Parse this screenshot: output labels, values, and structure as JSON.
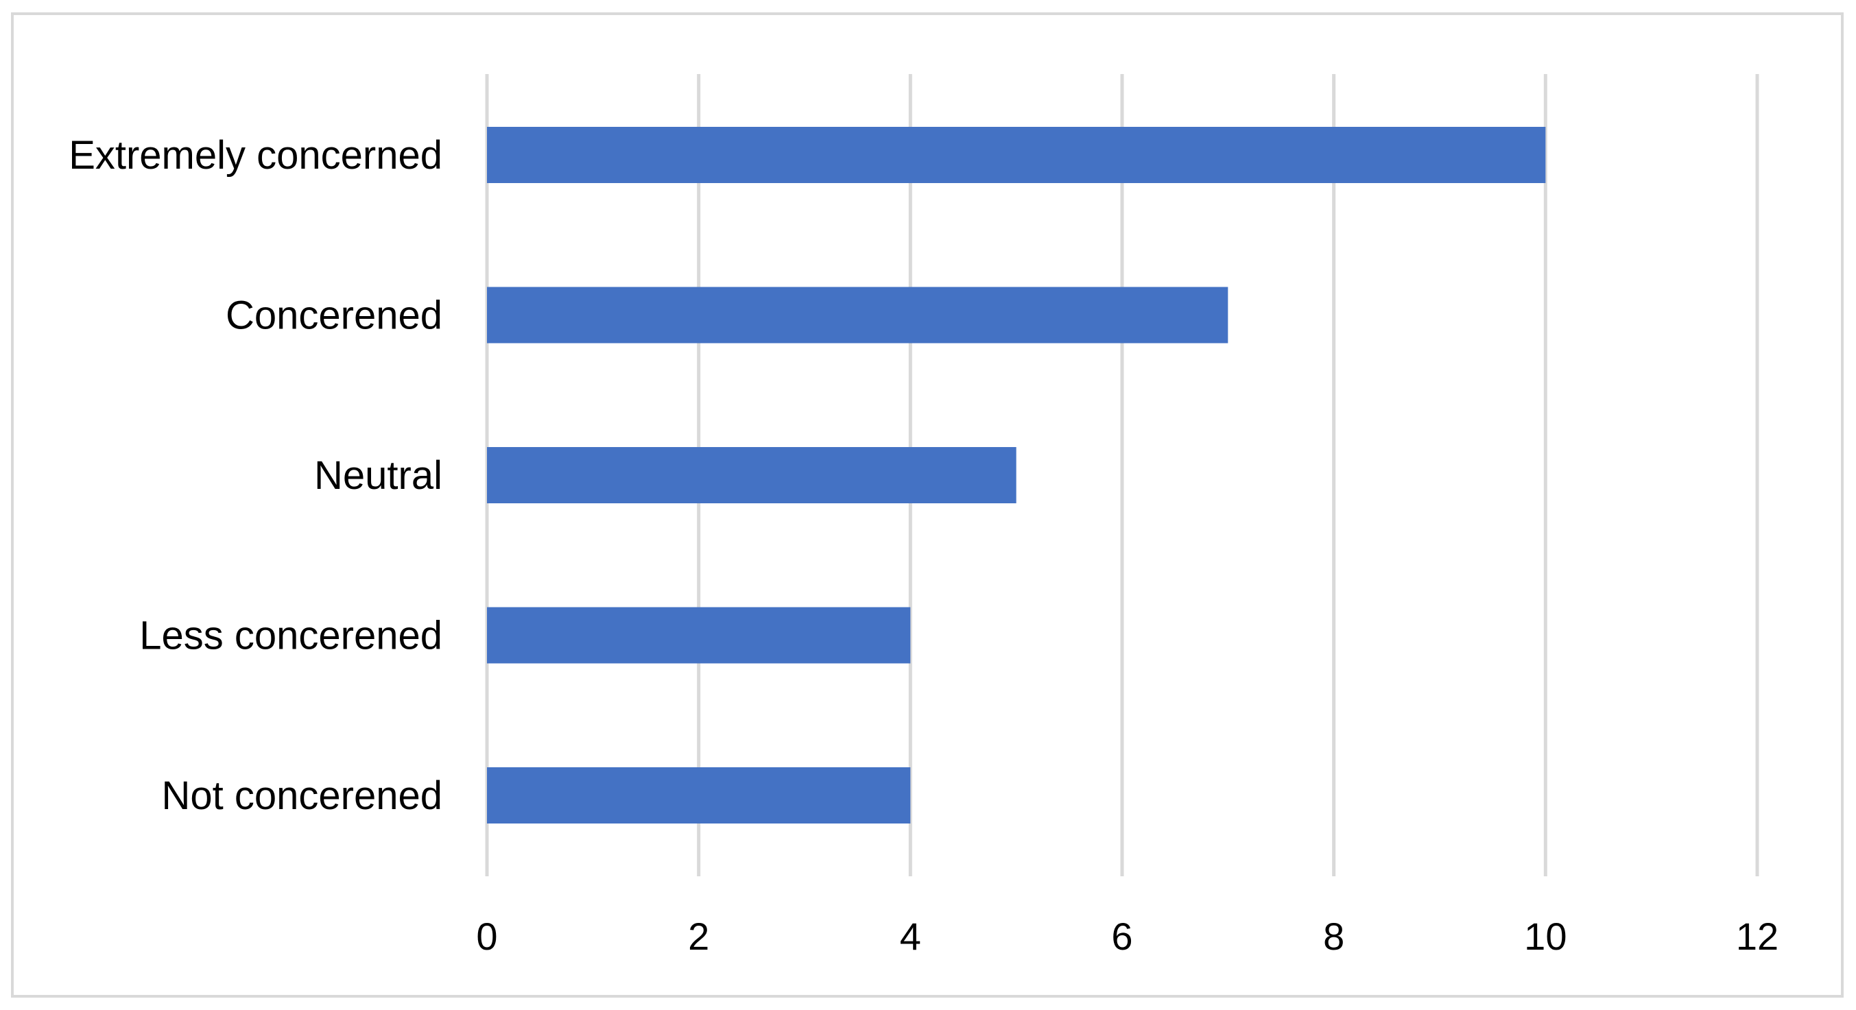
{
  "chart_data": {
    "type": "bar",
    "orientation": "horizontal",
    "categories": [
      "Extremely concerned",
      "Concerened",
      "Neutral",
      "Less concerened",
      "Not concerened"
    ],
    "values": [
      10,
      7,
      5,
      4,
      4
    ],
    "xlim": [
      0,
      12
    ],
    "xticks": [
      "0",
      "2",
      "4",
      "6",
      "8",
      "10",
      "12"
    ],
    "grid": "vertical",
    "legend": "none",
    "bar_color": "#4472C4",
    "grid_color": "#D9D9D9",
    "border_color": "#D9D9D9"
  }
}
